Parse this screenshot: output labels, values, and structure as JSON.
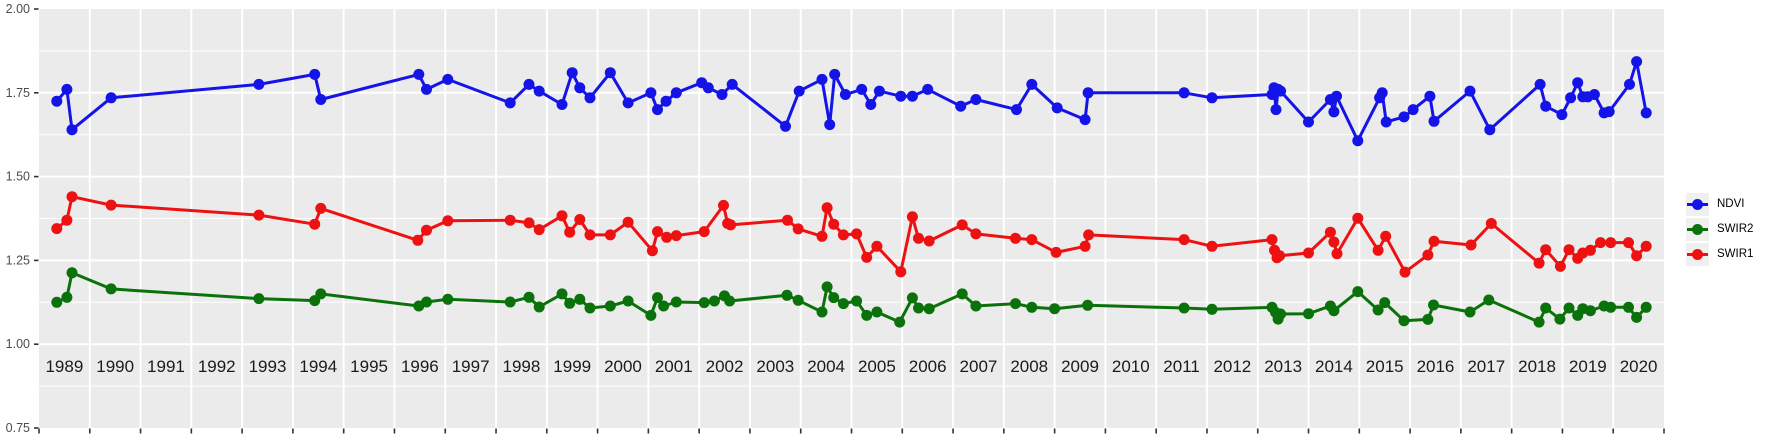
{
  "chart_data": {
    "type": "line",
    "title": "",
    "xlabel": "",
    "ylabel": "",
    "panel_bg": "#ebebeb",
    "grid": {
      "major_color": "#ffffff",
      "minor_color": "#ffffff",
      "major_width": 2,
      "minor_width": 1
    },
    "x_axis": {
      "domain": [
        1989,
        2021
      ],
      "tick_years": [
        1989,
        1990,
        1991,
        1992,
        1993,
        1994,
        1995,
        1996,
        1997,
        1998,
        1999,
        2000,
        2001,
        2002,
        2003,
        2004,
        2005,
        2006,
        2007,
        2008,
        2009,
        2010,
        2011,
        2012,
        2013,
        2014,
        2015,
        2016,
        2017,
        2018,
        2019,
        2020,
        2021
      ],
      "year_labels": [
        "1989",
        "1990",
        "1991",
        "1992",
        "1993",
        "1994",
        "1995",
        "1996",
        "1997",
        "1998",
        "1999",
        "2000",
        "2001",
        "2002",
        "2003",
        "2004",
        "2005",
        "2006",
        "2007",
        "2008",
        "2009",
        "2010",
        "2011",
        "2012",
        "2013",
        "2014",
        "2015",
        "2016",
        "2017",
        "2018",
        "2019",
        "2020"
      ],
      "labels_inside_panel": true,
      "label_color": "#1a1a1a",
      "tick_color": "#333333"
    },
    "y_axis": {
      "domain": [
        0.75,
        2.0
      ],
      "tick_labels": [
        "2.00",
        "1.75",
        "1.50",
        "1.25",
        "1.00",
        "0.75"
      ],
      "tick_values": [
        2.0,
        1.75,
        1.5,
        1.25,
        1.0,
        0.75
      ],
      "minor_values": [
        1.875,
        1.625,
        1.375,
        1.125,
        0.875
      ],
      "label_color": "#4d4d4d",
      "tick_color": "#333333"
    },
    "legend": {
      "position": "right",
      "key_bg": "#f0f0f0",
      "items": [
        "NDVI",
        "SWIR2",
        "SWIR1"
      ]
    },
    "series": [
      {
        "name": "NDVI",
        "color": "#1414e8",
        "points": [
          [
            1989.35,
            1.725
          ],
          [
            1989.55,
            1.76
          ],
          [
            1989.65,
            1.64
          ],
          [
            1990.42,
            1.735
          ],
          [
            1993.33,
            1.775
          ],
          [
            1994.43,
            1.805
          ],
          [
            1994.55,
            1.73
          ],
          [
            1996.48,
            1.805
          ],
          [
            1996.63,
            1.76
          ],
          [
            1997.05,
            1.79
          ],
          [
            1998.28,
            1.72
          ],
          [
            1998.65,
            1.775
          ],
          [
            1998.85,
            1.755
          ],
          [
            1999.3,
            1.715
          ],
          [
            1999.5,
            1.81
          ],
          [
            1999.65,
            1.765
          ],
          [
            1999.85,
            1.735
          ],
          [
            2000.25,
            1.81
          ],
          [
            2000.6,
            1.72
          ],
          [
            2001.05,
            1.75
          ],
          [
            2001.18,
            1.7
          ],
          [
            2001.35,
            1.725
          ],
          [
            2001.55,
            1.75
          ],
          [
            2002.05,
            1.78
          ],
          [
            2002.18,
            1.765
          ],
          [
            2002.45,
            1.745
          ],
          [
            2002.65,
            1.775
          ],
          [
            2003.7,
            1.65
          ],
          [
            2003.97,
            1.755
          ],
          [
            2004.42,
            1.79
          ],
          [
            2004.57,
            1.655
          ],
          [
            2004.67,
            1.805
          ],
          [
            2004.88,
            1.745
          ],
          [
            2005.2,
            1.76
          ],
          [
            2005.38,
            1.715
          ],
          [
            2005.55,
            1.755
          ],
          [
            2005.97,
            1.74
          ],
          [
            2006.2,
            1.74
          ],
          [
            2006.5,
            1.76
          ],
          [
            2007.15,
            1.71
          ],
          [
            2007.45,
            1.73
          ],
          [
            2008.25,
            1.7
          ],
          [
            2008.55,
            1.775
          ],
          [
            2009.05,
            1.705
          ],
          [
            2009.6,
            1.67
          ],
          [
            2009.66,
            1.75
          ],
          [
            2011.55,
            1.75
          ],
          [
            2012.1,
            1.735
          ],
          [
            2013.28,
            1.745
          ],
          [
            2013.32,
            1.765
          ],
          [
            2013.36,
            1.7
          ],
          [
            2013.4,
            1.76
          ],
          [
            2013.45,
            1.755
          ],
          [
            2014.0,
            1.663
          ],
          [
            2014.43,
            1.73
          ],
          [
            2014.5,
            1.693
          ],
          [
            2014.55,
            1.74
          ],
          [
            2014.97,
            1.607
          ],
          [
            2015.4,
            1.735
          ],
          [
            2015.45,
            1.75
          ],
          [
            2015.53,
            1.663
          ],
          [
            2015.88,
            1.678
          ],
          [
            2016.06,
            1.7
          ],
          [
            2016.39,
            1.74
          ],
          [
            2016.47,
            1.665
          ],
          [
            2017.18,
            1.755
          ],
          [
            2017.57,
            1.64
          ],
          [
            2018.56,
            1.775
          ],
          [
            2018.67,
            1.71
          ],
          [
            2018.99,
            1.685
          ],
          [
            2019.16,
            1.735
          ],
          [
            2019.3,
            1.78
          ],
          [
            2019.4,
            1.738
          ],
          [
            2019.5,
            1.738
          ],
          [
            2019.63,
            1.745
          ],
          [
            2019.82,
            1.69
          ],
          [
            2019.92,
            1.694
          ],
          [
            2020.32,
            1.775
          ],
          [
            2020.46,
            1.843
          ],
          [
            2020.65,
            1.69
          ]
        ]
      },
      {
        "name": "SWIR2",
        "color": "#0b720b",
        "points": [
          [
            1989.35,
            1.125
          ],
          [
            1989.55,
            1.14
          ],
          [
            1989.65,
            1.213
          ],
          [
            1990.42,
            1.165
          ],
          [
            1993.33,
            1.136
          ],
          [
            1994.43,
            1.13
          ],
          [
            1994.55,
            1.15
          ],
          [
            1996.48,
            1.114
          ],
          [
            1996.63,
            1.126
          ],
          [
            1997.05,
            1.134
          ],
          [
            1998.28,
            1.126
          ],
          [
            1998.65,
            1.14
          ],
          [
            1998.85,
            1.111
          ],
          [
            1999.3,
            1.15
          ],
          [
            1999.45,
            1.122
          ],
          [
            1999.65,
            1.134
          ],
          [
            1999.85,
            1.108
          ],
          [
            2000.25,
            1.114
          ],
          [
            2000.6,
            1.129
          ],
          [
            2001.05,
            1.086
          ],
          [
            2001.18,
            1.139
          ],
          [
            2001.3,
            1.114
          ],
          [
            2001.55,
            1.126
          ],
          [
            2002.1,
            1.124
          ],
          [
            2002.3,
            1.129
          ],
          [
            2002.5,
            1.144
          ],
          [
            2002.6,
            1.129
          ],
          [
            2003.73,
            1.146
          ],
          [
            2003.95,
            1.131
          ],
          [
            2004.42,
            1.096
          ],
          [
            2004.52,
            1.171
          ],
          [
            2004.65,
            1.139
          ],
          [
            2004.84,
            1.121
          ],
          [
            2005.1,
            1.129
          ],
          [
            2005.3,
            1.086
          ],
          [
            2005.5,
            1.096
          ],
          [
            2005.95,
            1.066
          ],
          [
            2006.2,
            1.138
          ],
          [
            2006.32,
            1.108
          ],
          [
            2006.53,
            1.106
          ],
          [
            2007.18,
            1.15
          ],
          [
            2007.45,
            1.114
          ],
          [
            2008.23,
            1.121
          ],
          [
            2008.55,
            1.11
          ],
          [
            2009.0,
            1.106
          ],
          [
            2009.65,
            1.116
          ],
          [
            2011.55,
            1.108
          ],
          [
            2012.1,
            1.104
          ],
          [
            2013.28,
            1.11
          ],
          [
            2013.35,
            1.095
          ],
          [
            2013.4,
            1.075
          ],
          [
            2013.45,
            1.09
          ],
          [
            2014.0,
            1.091
          ],
          [
            2014.43,
            1.114
          ],
          [
            2014.5,
            1.1
          ],
          [
            2014.97,
            1.157
          ],
          [
            2015.37,
            1.102
          ],
          [
            2015.5,
            1.124
          ],
          [
            2015.88,
            1.07
          ],
          [
            2016.35,
            1.074
          ],
          [
            2016.46,
            1.117
          ],
          [
            2017.18,
            1.096
          ],
          [
            2017.55,
            1.132
          ],
          [
            2018.54,
            1.066
          ],
          [
            2018.67,
            1.108
          ],
          [
            2018.95,
            1.075
          ],
          [
            2019.13,
            1.108
          ],
          [
            2019.3,
            1.086
          ],
          [
            2019.4,
            1.106
          ],
          [
            2019.55,
            1.1
          ],
          [
            2019.82,
            1.114
          ],
          [
            2019.95,
            1.11
          ],
          [
            2020.3,
            1.11
          ],
          [
            2020.46,
            1.08
          ],
          [
            2020.65,
            1.11
          ]
        ]
      },
      {
        "name": "SWIR1",
        "color": "#ee1111",
        "points": [
          [
            1989.35,
            1.345
          ],
          [
            1989.55,
            1.37
          ],
          [
            1989.65,
            1.44
          ],
          [
            1990.42,
            1.415
          ],
          [
            1993.33,
            1.385
          ],
          [
            1994.43,
            1.358
          ],
          [
            1994.55,
            1.405
          ],
          [
            1996.46,
            1.31
          ],
          [
            1996.63,
            1.34
          ],
          [
            1997.05,
            1.368
          ],
          [
            1998.28,
            1.37
          ],
          [
            1998.65,
            1.362
          ],
          [
            1998.85,
            1.342
          ],
          [
            1999.3,
            1.383
          ],
          [
            1999.45,
            1.334
          ],
          [
            1999.65,
            1.372
          ],
          [
            1999.85,
            1.326
          ],
          [
            2000.25,
            1.326
          ],
          [
            2000.6,
            1.364
          ],
          [
            2001.08,
            1.279
          ],
          [
            2001.18,
            1.336
          ],
          [
            2001.36,
            1.319
          ],
          [
            2001.55,
            1.324
          ],
          [
            2002.1,
            1.336
          ],
          [
            2002.48,
            1.414
          ],
          [
            2002.56,
            1.36
          ],
          [
            2002.62,
            1.356
          ],
          [
            2003.74,
            1.37
          ],
          [
            2003.95,
            1.344
          ],
          [
            2004.42,
            1.322
          ],
          [
            2004.52,
            1.407
          ],
          [
            2004.65,
            1.358
          ],
          [
            2004.84,
            1.326
          ],
          [
            2005.1,
            1.329
          ],
          [
            2005.3,
            1.259
          ],
          [
            2005.5,
            1.292
          ],
          [
            2005.97,
            1.216
          ],
          [
            2006.2,
            1.38
          ],
          [
            2006.32,
            1.316
          ],
          [
            2006.53,
            1.308
          ],
          [
            2007.18,
            1.356
          ],
          [
            2007.45,
            1.329
          ],
          [
            2008.23,
            1.316
          ],
          [
            2008.55,
            1.312
          ],
          [
            2009.03,
            1.274
          ],
          [
            2009.6,
            1.292
          ],
          [
            2009.67,
            1.326
          ],
          [
            2011.55,
            1.312
          ],
          [
            2012.1,
            1.292
          ],
          [
            2013.28,
            1.312
          ],
          [
            2013.33,
            1.28
          ],
          [
            2013.38,
            1.258
          ],
          [
            2013.43,
            1.264
          ],
          [
            2014.0,
            1.272
          ],
          [
            2014.43,
            1.334
          ],
          [
            2014.5,
            1.305
          ],
          [
            2014.56,
            1.27
          ],
          [
            2014.97,
            1.376
          ],
          [
            2015.37,
            1.28
          ],
          [
            2015.52,
            1.322
          ],
          [
            2015.9,
            1.215
          ],
          [
            2016.35,
            1.266
          ],
          [
            2016.47,
            1.307
          ],
          [
            2017.2,
            1.296
          ],
          [
            2017.6,
            1.36
          ],
          [
            2018.54,
            1.242
          ],
          [
            2018.67,
            1.282
          ],
          [
            2018.96,
            1.232
          ],
          [
            2019.13,
            1.282
          ],
          [
            2019.3,
            1.256
          ],
          [
            2019.4,
            1.272
          ],
          [
            2019.55,
            1.28
          ],
          [
            2019.75,
            1.303
          ],
          [
            2019.95,
            1.303
          ],
          [
            2020.3,
            1.303
          ],
          [
            2020.46,
            1.264
          ],
          [
            2020.65,
            1.292
          ]
        ]
      }
    ]
  }
}
